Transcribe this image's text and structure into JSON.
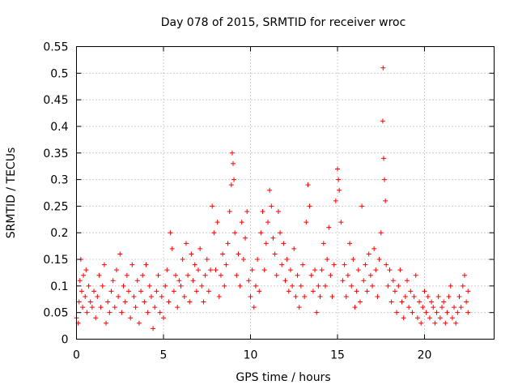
{
  "chart_data": {
    "type": "scatter",
    "title": "Day 078 of 2015, SRMTID for receiver wroc",
    "xlabel": "GPS time / hours",
    "ylabel": "SRMTID / TECUs",
    "xlim": [
      0,
      24
    ],
    "ylim": [
      0,
      0.55
    ],
    "x_ticks": [
      0,
      5,
      10,
      15,
      20
    ],
    "x_tick_labels": [
      "0",
      "5",
      "10",
      "15",
      "20"
    ],
    "y_ticks": [
      0,
      0.05,
      0.1,
      0.15,
      0.2,
      0.25,
      0.3,
      0.35,
      0.4,
      0.45,
      0.5,
      0.55
    ],
    "y_tick_labels": [
      "0",
      "0.05",
      "0.1",
      "0.15",
      "0.2",
      "0.25",
      "0.3",
      "0.35",
      "0.4",
      "0.45",
      "0.5",
      "0.55"
    ],
    "grid": true,
    "marker": "+",
    "marker_color": "#ff0000",
    "series": [
      {
        "name": "SRMTID",
        "points": [
          [
            0.0,
            0.04
          ],
          [
            0.1,
            0.03
          ],
          [
            0.15,
            0.07
          ],
          [
            0.2,
            0.11
          ],
          [
            0.25,
            0.15
          ],
          [
            0.3,
            0.09
          ],
          [
            0.35,
            0.06
          ],
          [
            0.4,
            0.12
          ],
          [
            0.5,
            0.08
          ],
          [
            0.55,
            0.13
          ],
          [
            0.6,
            0.05
          ],
          [
            0.7,
            0.1
          ],
          [
            0.8,
            0.07
          ],
          [
            0.9,
            0.06
          ],
          [
            1.0,
            0.09
          ],
          [
            1.1,
            0.04
          ],
          [
            1.2,
            0.08
          ],
          [
            1.3,
            0.12
          ],
          [
            1.4,
            0.06
          ],
          [
            1.5,
            0.1
          ],
          [
            1.6,
            0.14
          ],
          [
            1.7,
            0.03
          ],
          [
            1.8,
            0.07
          ],
          [
            1.9,
            0.05
          ],
          [
            2.0,
            0.09
          ],
          [
            2.1,
            0.11
          ],
          [
            2.2,
            0.06
          ],
          [
            2.3,
            0.13
          ],
          [
            2.4,
            0.08
          ],
          [
            2.5,
            0.16
          ],
          [
            2.6,
            0.05
          ],
          [
            2.7,
            0.1
          ],
          [
            2.8,
            0.07
          ],
          [
            2.9,
            0.12
          ],
          [
            3.0,
            0.09
          ],
          [
            3.1,
            0.04
          ],
          [
            3.2,
            0.14
          ],
          [
            3.3,
            0.08
          ],
          [
            3.4,
            0.06
          ],
          [
            3.5,
            0.11
          ],
          [
            3.6,
            0.03
          ],
          [
            3.7,
            0.09
          ],
          [
            3.8,
            0.12
          ],
          [
            3.9,
            0.07
          ],
          [
            4.0,
            0.14
          ],
          [
            4.1,
            0.05
          ],
          [
            4.2,
            0.1
          ],
          [
            4.3,
            0.08
          ],
          [
            4.4,
            0.02
          ],
          [
            4.5,
            0.06
          ],
          [
            4.6,
            0.09
          ],
          [
            4.7,
            0.12
          ],
          [
            4.8,
            0.05
          ],
          [
            4.9,
            0.08
          ],
          [
            5.0,
            0.04
          ],
          [
            5.1,
            0.1
          ],
          [
            5.2,
            0.13
          ],
          [
            5.3,
            0.07
          ],
          [
            5.4,
            0.2
          ],
          [
            5.5,
            0.17
          ],
          [
            5.6,
            0.09
          ],
          [
            5.7,
            0.12
          ],
          [
            5.8,
            0.06
          ],
          [
            5.9,
            0.11
          ],
          [
            6.0,
            0.1
          ],
          [
            6.1,
            0.15
          ],
          [
            6.2,
            0.08
          ],
          [
            6.3,
            0.18
          ],
          [
            6.4,
            0.12
          ],
          [
            6.5,
            0.07
          ],
          [
            6.6,
            0.16
          ],
          [
            6.7,
            0.11
          ],
          [
            6.8,
            0.14
          ],
          [
            6.9,
            0.09
          ],
          [
            7.0,
            0.13
          ],
          [
            7.1,
            0.17
          ],
          [
            7.2,
            0.1
          ],
          [
            7.3,
            0.07
          ],
          [
            7.4,
            0.12
          ],
          [
            7.5,
            0.15
          ],
          [
            7.6,
            0.09
          ],
          [
            7.7,
            0.13
          ],
          [
            7.8,
            0.25
          ],
          [
            7.9,
            0.2
          ],
          [
            8.0,
            0.13
          ],
          [
            8.1,
            0.22
          ],
          [
            8.2,
            0.08
          ],
          [
            8.3,
            0.12
          ],
          [
            8.4,
            0.16
          ],
          [
            8.5,
            0.1
          ],
          [
            8.6,
            0.14
          ],
          [
            8.7,
            0.18
          ],
          [
            8.8,
            0.24
          ],
          [
            8.9,
            0.29
          ],
          [
            8.95,
            0.35
          ],
          [
            9.0,
            0.33
          ],
          [
            9.05,
            0.3
          ],
          [
            9.1,
            0.2
          ],
          [
            9.2,
            0.12
          ],
          [
            9.3,
            0.16
          ],
          [
            9.4,
            0.1
          ],
          [
            9.5,
            0.22
          ],
          [
            9.6,
            0.15
          ],
          [
            9.7,
            0.19
          ],
          [
            9.8,
            0.24
          ],
          [
            9.9,
            0.11
          ],
          [
            10.0,
            0.08
          ],
          [
            10.1,
            0.13
          ],
          [
            10.2,
            0.06
          ],
          [
            10.3,
            0.1
          ],
          [
            10.4,
            0.15
          ],
          [
            10.5,
            0.09
          ],
          [
            10.6,
            0.2
          ],
          [
            10.7,
            0.24
          ],
          [
            10.8,
            0.13
          ],
          [
            10.9,
            0.18
          ],
          [
            11.0,
            0.22
          ],
          [
            11.1,
            0.28
          ],
          [
            11.2,
            0.25
          ],
          [
            11.3,
            0.19
          ],
          [
            11.4,
            0.16
          ],
          [
            11.5,
            0.12
          ],
          [
            11.6,
            0.24
          ],
          [
            11.7,
            0.2
          ],
          [
            11.8,
            0.14
          ],
          [
            11.9,
            0.18
          ],
          [
            12.0,
            0.11
          ],
          [
            12.1,
            0.15
          ],
          [
            12.2,
            0.09
          ],
          [
            12.3,
            0.13
          ],
          [
            12.4,
            0.1
          ],
          [
            12.5,
            0.17
          ],
          [
            12.6,
            0.08
          ],
          [
            12.7,
            0.12
          ],
          [
            12.8,
            0.06
          ],
          [
            12.9,
            0.1
          ],
          [
            13.0,
            0.14
          ],
          [
            13.1,
            0.08
          ],
          [
            13.2,
            0.22
          ],
          [
            13.3,
            0.29
          ],
          [
            13.4,
            0.25
          ],
          [
            13.5,
            0.12
          ],
          [
            13.6,
            0.09
          ],
          [
            13.7,
            0.13
          ],
          [
            13.8,
            0.05
          ],
          [
            13.9,
            0.1
          ],
          [
            14.0,
            0.08
          ],
          [
            14.1,
            0.13
          ],
          [
            14.2,
            0.18
          ],
          [
            14.3,
            0.1
          ],
          [
            14.4,
            0.15
          ],
          [
            14.5,
            0.21
          ],
          [
            14.6,
            0.12
          ],
          [
            14.7,
            0.08
          ],
          [
            14.8,
            0.14
          ],
          [
            14.9,
            0.26
          ],
          [
            15.0,
            0.32
          ],
          [
            15.05,
            0.3
          ],
          [
            15.1,
            0.28
          ],
          [
            15.2,
            0.22
          ],
          [
            15.3,
            0.11
          ],
          [
            15.4,
            0.14
          ],
          [
            15.5,
            0.08
          ],
          [
            15.6,
            0.12
          ],
          [
            15.7,
            0.18
          ],
          [
            15.8,
            0.1
          ],
          [
            15.9,
            0.15
          ],
          [
            16.0,
            0.06
          ],
          [
            16.1,
            0.09
          ],
          [
            16.2,
            0.13
          ],
          [
            16.3,
            0.07
          ],
          [
            16.4,
            0.25
          ],
          [
            16.5,
            0.11
          ],
          [
            16.6,
            0.14
          ],
          [
            16.7,
            0.09
          ],
          [
            16.8,
            0.16
          ],
          [
            16.9,
            0.12
          ],
          [
            17.0,
            0.1
          ],
          [
            17.1,
            0.17
          ],
          [
            17.2,
            0.13
          ],
          [
            17.3,
            0.08
          ],
          [
            17.4,
            0.15
          ],
          [
            17.5,
            0.2
          ],
          [
            17.6,
            0.41
          ],
          [
            17.62,
            0.51
          ],
          [
            17.65,
            0.34
          ],
          [
            17.7,
            0.3
          ],
          [
            17.75,
            0.26
          ],
          [
            17.8,
            0.14
          ],
          [
            17.9,
            0.1
          ],
          [
            18.0,
            0.13
          ],
          [
            18.1,
            0.07
          ],
          [
            18.2,
            0.11
          ],
          [
            18.3,
            0.09
          ],
          [
            18.4,
            0.05
          ],
          [
            18.5,
            0.1
          ],
          [
            18.6,
            0.13
          ],
          [
            18.7,
            0.07
          ],
          [
            18.8,
            0.04
          ],
          [
            18.9,
            0.08
          ],
          [
            19.0,
            0.11
          ],
          [
            19.1,
            0.06
          ],
          [
            19.2,
            0.09
          ],
          [
            19.3,
            0.05
          ],
          [
            19.4,
            0.08
          ],
          [
            19.5,
            0.12
          ],
          [
            19.6,
            0.04
          ],
          [
            19.7,
            0.07
          ],
          [
            19.8,
            0.03
          ],
          [
            19.9,
            0.06
          ],
          [
            20.0,
            0.09
          ],
          [
            20.1,
            0.05
          ],
          [
            20.2,
            0.08
          ],
          [
            20.3,
            0.04
          ],
          [
            20.4,
            0.07
          ],
          [
            20.5,
            0.06
          ],
          [
            20.6,
            0.03
          ],
          [
            20.7,
            0.05
          ],
          [
            20.8,
            0.08
          ],
          [
            20.9,
            0.04
          ],
          [
            21.0,
            0.06
          ],
          [
            21.1,
            0.07
          ],
          [
            21.2,
            0.03
          ],
          [
            21.3,
            0.05
          ],
          [
            21.4,
            0.08
          ],
          [
            21.5,
            0.1
          ],
          [
            21.6,
            0.04
          ],
          [
            21.7,
            0.06
          ],
          [
            21.8,
            0.03
          ],
          [
            21.9,
            0.05
          ],
          [
            22.0,
            0.08
          ],
          [
            22.1,
            0.06
          ],
          [
            22.2,
            0.1
          ],
          [
            22.3,
            0.12
          ],
          [
            22.4,
            0.07
          ],
          [
            22.5,
            0.05
          ],
          [
            22.5,
            0.09
          ]
        ]
      }
    ]
  }
}
